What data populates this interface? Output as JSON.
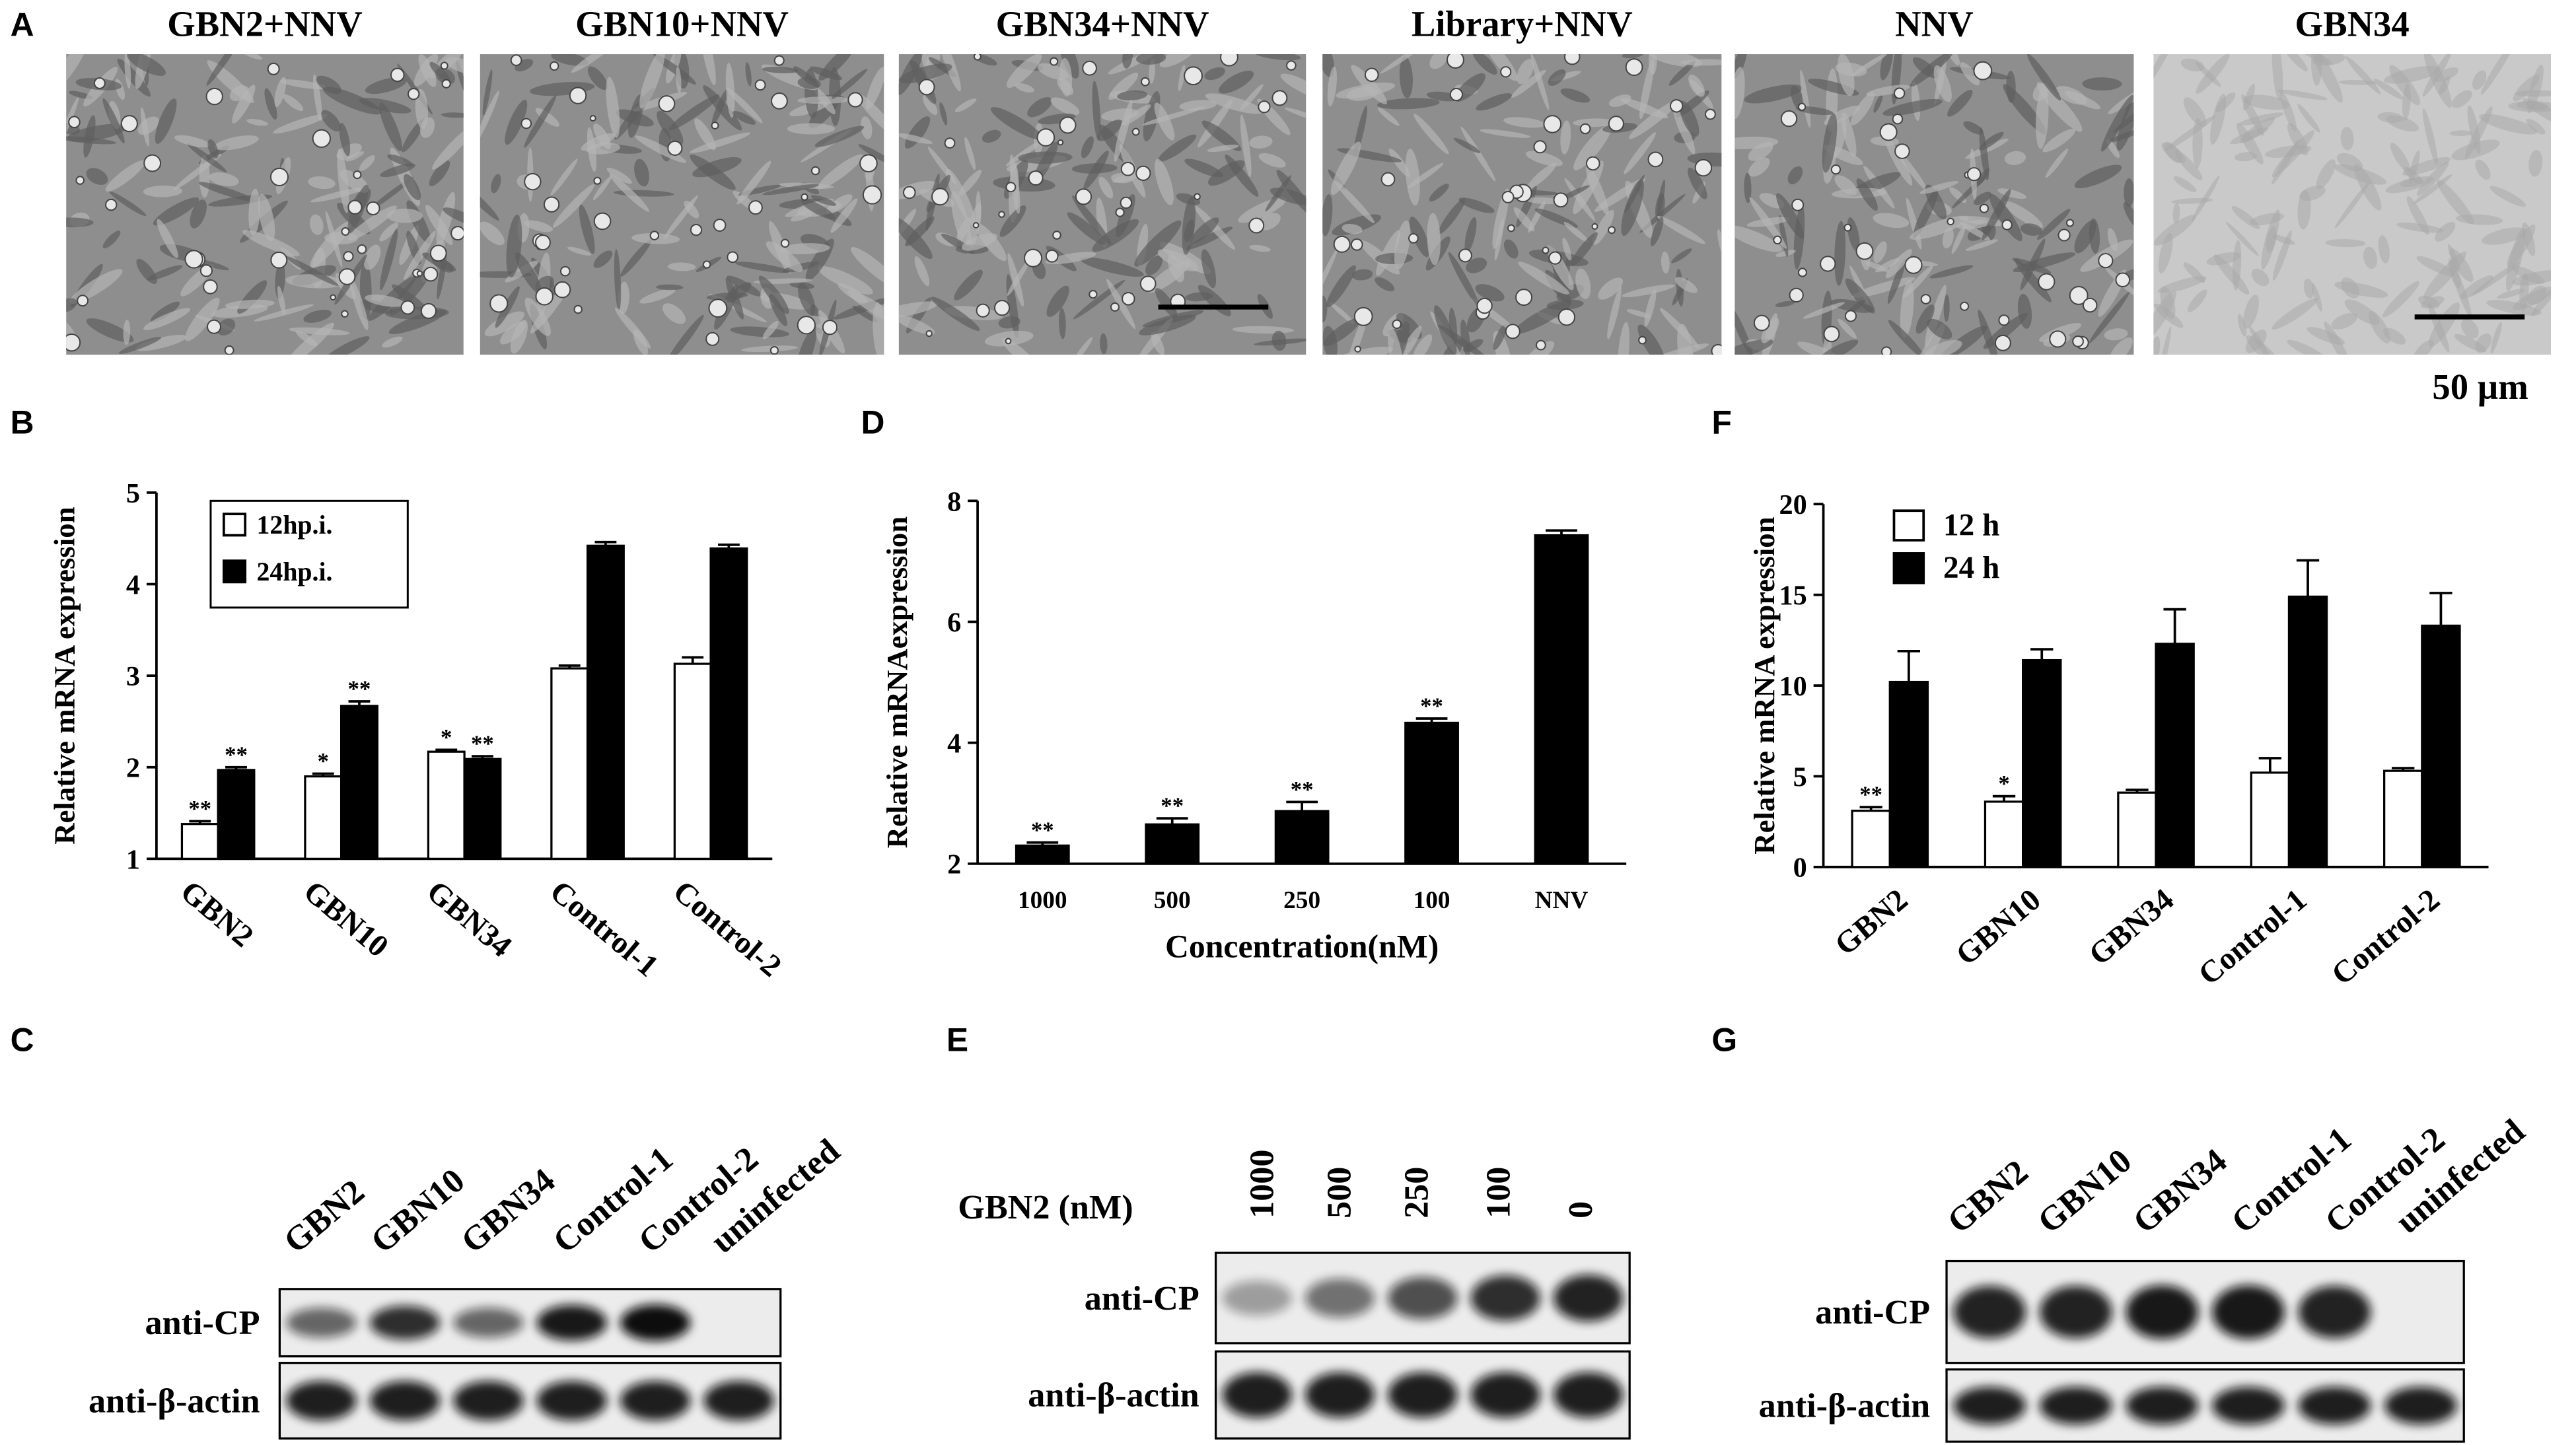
{
  "panel_labels": [
    "A",
    "B",
    "C",
    "D",
    "E",
    "F",
    "G"
  ],
  "micrographs": {
    "titles": [
      "GBN2+NNV",
      "GBN10+NNV",
      "GBN34+NNV",
      "Library+NNV",
      "NNV",
      "GBN34"
    ],
    "scale_bar": "50 µm"
  },
  "chart_data": [
    {
      "type": "bar",
      "ylabel": "Relative mRNA expression",
      "categories": [
        "GBN2",
        "GBN10",
        "GBN34",
        "Control-1",
        "Control-2"
      ],
      "series": [
        {
          "name": "12hp.i.",
          "color": "#ffffff",
          "values": [
            1.38,
            1.9,
            2.17,
            3.08,
            3.13
          ],
          "errors": [
            0.03,
            0.03,
            0.02,
            0.03,
            0.07
          ],
          "annotations": [
            "**",
            "*",
            "*",
            null,
            null
          ]
        },
        {
          "name": "24hp.i.",
          "color": "#000000",
          "values": [
            1.97,
            2.67,
            2.09,
            4.42,
            4.39
          ],
          "errors": [
            0.03,
            0.05,
            0.03,
            0.04,
            0.04
          ],
          "annotations": [
            "**",
            "**",
            "**",
            null,
            null
          ]
        }
      ],
      "ylim": [
        1,
        5
      ],
      "yticks": [
        1,
        2,
        3,
        4,
        5
      ],
      "legend": "upper left",
      "legend_box": true
    },
    {
      "type": "bar",
      "ylabel": "Relative mRNAexpression",
      "xlabel": "Concentration(nM)",
      "categories": [
        "1000",
        "500",
        "250",
        "100",
        "NNV"
      ],
      "color": "#000000",
      "values": [
        2.3,
        2.65,
        2.87,
        4.33,
        7.43
      ],
      "errors": [
        0.05,
        0.1,
        0.15,
        0.07,
        0.08
      ],
      "annotations": [
        "**",
        "**",
        "**",
        "**",
        null
      ],
      "ylim": [
        2,
        8
      ],
      "yticks": [
        2,
        4,
        6,
        8
      ]
    },
    {
      "type": "bar",
      "ylabel": "Relative mRNA expression",
      "categories": [
        "GBN2",
        "GBN10",
        "GBN34",
        "Control-1",
        "Control-2"
      ],
      "series": [
        {
          "name": "12 h",
          "color": "#ffffff",
          "values": [
            3.1,
            3.6,
            4.1,
            5.2,
            5.3
          ],
          "errors": [
            0.2,
            0.3,
            0.15,
            0.8,
            0.15
          ],
          "annotations": [
            "**",
            "*",
            null,
            null,
            null
          ]
        },
        {
          "name": "24 h",
          "color": "#000000",
          "values": [
            10.2,
            11.4,
            12.3,
            14.9,
            13.3
          ],
          "errors": [
            1.7,
            0.6,
            1.9,
            2.0,
            1.8
          ],
          "annotations": [
            null,
            null,
            null,
            null,
            null
          ]
        }
      ],
      "ylim": [
        0,
        20
      ],
      "yticks": [
        0,
        5,
        10,
        15,
        20
      ],
      "legend": "upper left",
      "legend_box": false
    }
  ],
  "blots": [
    {
      "lanes": [
        "GBN2",
        "GBN10",
        "GBN34",
        "Control-1",
        "Control-2",
        "uninfected"
      ],
      "rows": [
        "anti-CP",
        "anti-β-actin"
      ]
    },
    {
      "header": "GBN2 (nM)",
      "lanes": [
        "1000",
        "500",
        "250",
        "100",
        "0"
      ],
      "rows": [
        "anti-CP",
        "anti-β-actin"
      ]
    },
    {
      "lanes": [
        "GBN2",
        "GBN10",
        "GBN34",
        "Control-1",
        "Control-2",
        "uninfected"
      ],
      "rows": [
        "anti-CP",
        "anti-β-actin"
      ]
    }
  ]
}
